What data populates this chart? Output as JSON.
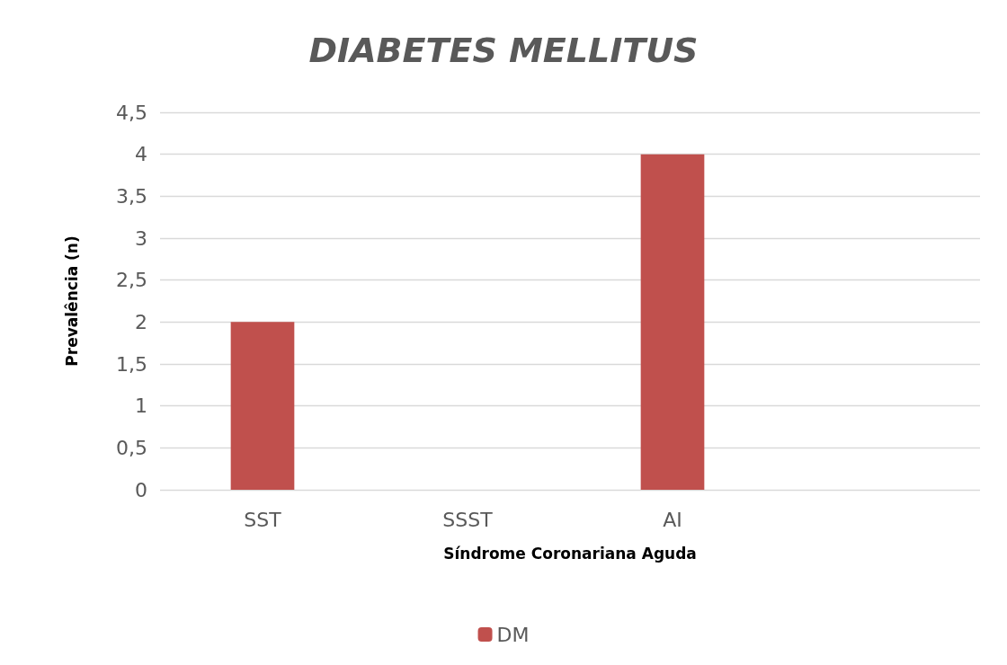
{
  "chart_data": {
    "type": "bar",
    "title": "DIABETES MELLITUS",
    "xlabel": "Síndrome Coronariana Aguda",
    "ylabel": "Prevalência (n)",
    "categories": [
      "SST",
      "SSST",
      "AI",
      null
    ],
    "series": [
      {
        "name": "DM",
        "color": "#c0504d",
        "values": [
          2,
          0,
          4,
          null
        ]
      }
    ],
    "ylim": [
      0,
      4.5
    ],
    "yticks": [
      0,
      {
        "value": 0.5,
        "label": "0,5"
      },
      1,
      {
        "value": 1.5,
        "label": "1,5"
      },
      2,
      {
        "value": 2.5,
        "label": "2,5"
      },
      3,
      {
        "value": 3.5,
        "label": "3,5"
      },
      4,
      {
        "value": 4.5,
        "label": "4,5"
      }
    ],
    "grid": "y",
    "legend": "bottom"
  }
}
